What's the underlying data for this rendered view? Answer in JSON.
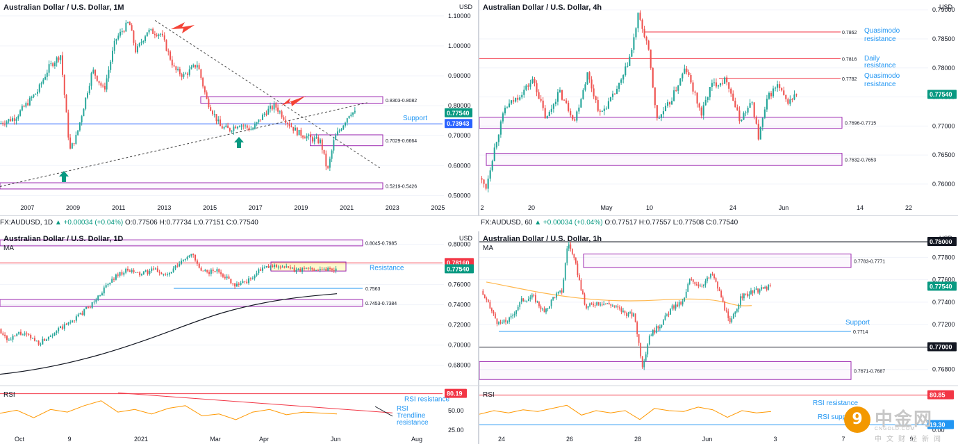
{
  "colors": {
    "up": "#26a69a",
    "down": "#ef5350",
    "blue": "#2962ff",
    "label_blue": "#2196f3",
    "purple": "#9c27b0",
    "red_line": "#f23645",
    "rsi": "#ff9800",
    "teal": "#089981",
    "orange_arrow": "#f44336",
    "grid": "#f0f3fa",
    "axis_text": "#131722"
  },
  "tickers": {
    "daily": {
      "prefix": "FX:AUDUSD, 1D",
      "change": "▲ +0.00034 (+0.04%)",
      "ohlc": "O:0.77506 H:0.77734 L:0.77151 C:0.77540",
      "last": "0.77540"
    },
    "hourly": {
      "prefix": "FX:AUDUSD, 60",
      "change": "▲ +0.00034 (+0.04%)",
      "ohlc": "O:0.77517 H:0.77557 L:0.77508 C:0.77540",
      "last": "0.77540"
    }
  },
  "watermark": {
    "glyph": "9",
    "name": "中金网",
    "sub": "CNGOLD.COM",
    "cn": "中文财经新闻"
  },
  "chart_data": [
    {
      "id": "monthly",
      "type": "candlestick",
      "title": "Australian Dollar / U.S. Dollar, 1M",
      "currency": "USD",
      "ylim": [
        0.48,
        1.13
      ],
      "xlim": [
        2005.8,
        2025.2
      ],
      "y_ticks": [
        "1.10000",
        "1.00000",
        "0.90000",
        "0.80000",
        "0.70000",
        "0.60000",
        "0.50000"
      ],
      "y_tick_values": [
        1.1,
        1.0,
        0.9,
        0.8,
        0.7,
        0.6,
        0.5
      ],
      "x_ticks": [
        "2007",
        "2009",
        "2011",
        "2013",
        "2015",
        "2017",
        "2019",
        "2021",
        "2023",
        "2025"
      ],
      "x_tick_values": [
        2007,
        2009,
        2011,
        2013,
        2015,
        2017,
        2019,
        2021,
        2023,
        2025
      ],
      "price_path": [
        [
          2005.8,
          0.74
        ],
        [
          2006.5,
          0.76
        ],
        [
          2007.5,
          0.85
        ],
        [
          2008.0,
          0.93
        ],
        [
          2008.5,
          0.97
        ],
        [
          2008.9,
          0.65
        ],
        [
          2009.2,
          0.7
        ],
        [
          2009.9,
          0.92
        ],
        [
          2010.4,
          0.85
        ],
        [
          2010.9,
          1.02
        ],
        [
          2011.5,
          1.08
        ],
        [
          2011.8,
          0.98
        ],
        [
          2012.3,
          1.05
        ],
        [
          2012.9,
          1.04
        ],
        [
          2013.5,
          0.92
        ],
        [
          2013.9,
          0.9
        ],
        [
          2014.5,
          0.94
        ],
        [
          2014.9,
          0.82
        ],
        [
          2015.5,
          0.73
        ],
        [
          2015.9,
          0.72
        ],
        [
          2016.3,
          0.74
        ],
        [
          2016.9,
          0.72
        ],
        [
          2017.5,
          0.78
        ],
        [
          2017.9,
          0.8
        ],
        [
          2018.5,
          0.74
        ],
        [
          2018.9,
          0.71
        ],
        [
          2019.5,
          0.69
        ],
        [
          2019.9,
          0.68
        ],
        [
          2020.2,
          0.58
        ],
        [
          2020.5,
          0.69
        ],
        [
          2020.9,
          0.74
        ],
        [
          2021.2,
          0.78
        ],
        [
          2021.4,
          0.7754
        ]
      ],
      "zones": [
        {
          "label": "0.8303-0.8082",
          "from": 0.8082,
          "to": 0.8303
        },
        {
          "label": "0.7029-0.6664",
          "from": 0.6664,
          "to": 0.7029
        },
        {
          "label": "0.5219-0.5426",
          "from": 0.5219,
          "to": 0.5426
        }
      ],
      "support": {
        "value": 0.73943,
        "label": "Support",
        "badge": "0.73943"
      },
      "last": {
        "value": 0.7754,
        "badge": "0.77540"
      }
    },
    {
      "id": "h4",
      "type": "candlestick",
      "title": "Australian Dollar / U.S. Dollar, 4h",
      "currency": "USD",
      "ylim": [
        0.757,
        0.7905
      ],
      "y_ticks": [
        "0.79000",
        "0.78500",
        "0.78000",
        "0.77500",
        "0.77000",
        "0.76500",
        "0.76000"
      ],
      "y_tick_values": [
        0.79,
        0.785,
        0.78,
        0.775,
        0.77,
        0.765,
        0.76
      ],
      "x_ticks": [
        "2",
        "20",
        "May",
        "10",
        "24",
        "Jun",
        "14",
        "22"
      ],
      "price_path": [
        [
          0,
          0.761
        ],
        [
          0.02,
          0.7595
        ],
        [
          0.05,
          0.767
        ],
        [
          0.08,
          0.773
        ],
        [
          0.12,
          0.775
        ],
        [
          0.17,
          0.778
        ],
        [
          0.21,
          0.771
        ],
        [
          0.25,
          0.776
        ],
        [
          0.3,
          0.771
        ],
        [
          0.34,
          0.779
        ],
        [
          0.38,
          0.772
        ],
        [
          0.42,
          0.775
        ],
        [
          0.45,
          0.778
        ],
        [
          0.48,
          0.783
        ],
        [
          0.5,
          0.789
        ],
        [
          0.53,
          0.784
        ],
        [
          0.56,
          0.771
        ],
        [
          0.6,
          0.774
        ],
        [
          0.65,
          0.78
        ],
        [
          0.7,
          0.772
        ],
        [
          0.73,
          0.777
        ],
        [
          0.78,
          0.778
        ],
        [
          0.82,
          0.771
        ],
        [
          0.86,
          0.774
        ],
        [
          0.88,
          0.768
        ],
        [
          0.91,
          0.775
        ],
        [
          0.94,
          0.777
        ],
        [
          0.97,
          0.774
        ],
        [
          1.0,
          0.7754
        ]
      ],
      "levels": [
        {
          "label": "0.7862",
          "value": 0.7862,
          "note": "Quasimodo resistance"
        },
        {
          "label": "0.7816",
          "value": 0.7816,
          "note": "Daily resistance"
        },
        {
          "label": "0.7782",
          "value": 0.7782,
          "note": "Quasimodo resistance"
        }
      ],
      "zones": [
        {
          "label": "0.7696-0.7715",
          "from": 0.7696,
          "to": 0.7715
        },
        {
          "label": "0.7632-0.7653",
          "from": 0.7632,
          "to": 0.7653
        }
      ],
      "last": {
        "value": 0.7754,
        "badge": "0.77540"
      }
    },
    {
      "id": "daily",
      "type": "candlestick",
      "title": "Australian Dollar / U.S. Dollar, 1D",
      "currency": "USD",
      "indicator": "MA",
      "ylim": [
        0.668,
        0.806
      ],
      "y_ticks": [
        "0.80000",
        "0.78000",
        "0.76000",
        "0.74000",
        "0.72000",
        "0.70000",
        "0.68000"
      ],
      "y_tick_values": [
        0.8,
        0.78,
        0.76,
        0.74,
        0.72,
        0.7,
        0.68
      ],
      "x_ticks": [
        "Oct",
        "9",
        "2021",
        "Mar",
        "Apr",
        "Jun",
        "Aug"
      ],
      "price_path": [
        [
          0,
          0.716
        ],
        [
          0.03,
          0.704
        ],
        [
          0.06,
          0.712
        ],
        [
          0.09,
          0.708
        ],
        [
          0.12,
          0.702
        ],
        [
          0.16,
          0.712
        ],
        [
          0.2,
          0.72
        ],
        [
          0.24,
          0.73
        ],
        [
          0.28,
          0.742
        ],
        [
          0.31,
          0.755
        ],
        [
          0.35,
          0.77
        ],
        [
          0.38,
          0.774
        ],
        [
          0.42,
          0.77
        ],
        [
          0.46,
          0.775
        ],
        [
          0.5,
          0.769
        ],
        [
          0.54,
          0.782
        ],
        [
          0.57,
          0.792
        ],
        [
          0.6,
          0.772
        ],
        [
          0.65,
          0.774
        ],
        [
          0.7,
          0.76
        ],
        [
          0.74,
          0.764
        ],
        [
          0.78,
          0.776
        ],
        [
          0.83,
          0.779
        ],
        [
          0.88,
          0.774
        ],
        [
          0.92,
          0.776
        ],
        [
          1.0,
          0.7754
        ]
      ],
      "zones": [
        {
          "label": "0.8045-0.7985",
          "from": 0.7985,
          "to": 0.8045
        },
        {
          "label": "0.7453-0.7384",
          "from": 0.7384,
          "to": 0.7453
        }
      ],
      "levels": [
        {
          "label": "0.7563",
          "value": 0.7563
        }
      ],
      "resistance": {
        "value": 0.7816,
        "label": "Resistance",
        "badge": "0.78160"
      },
      "last": {
        "value": 0.7754,
        "badge": "0.77540"
      },
      "rsi": {
        "label": "RSI",
        "ticks": [
          "50.00",
          "25.00"
        ],
        "badge": "80.19",
        "resistance_label": "RSI resistance",
        "trendline_label": "RSI Trendline resistance",
        "path": [
          [
            0,
            0.52
          ],
          [
            0.05,
            0.6
          ],
          [
            0.1,
            0.4
          ],
          [
            0.15,
            0.62
          ],
          [
            0.2,
            0.55
          ],
          [
            0.25,
            0.72
          ],
          [
            0.3,
            0.85
          ],
          [
            0.35,
            0.55
          ],
          [
            0.4,
            0.62
          ],
          [
            0.45,
            0.5
          ],
          [
            0.5,
            0.65
          ],
          [
            0.55,
            0.72
          ],
          [
            0.6,
            0.45
          ],
          [
            0.65,
            0.5
          ],
          [
            0.7,
            0.35
          ],
          [
            0.75,
            0.55
          ],
          [
            0.8,
            0.62
          ],
          [
            0.85,
            0.48
          ],
          [
            0.9,
            0.55
          ],
          [
            1.0,
            0.5
          ]
        ]
      }
    },
    {
      "id": "hourly",
      "type": "candlestick",
      "title": "Australian Dollar / U.S. Dollar, 1h",
      "currency": "USD",
      "indicator": "MA",
      "ylim": [
        0.7673,
        0.7797
      ],
      "y_ticks": [
        "0.77800",
        "0.77600",
        "0.77400",
        "0.77200",
        "0.77000",
        "0.76800"
      ],
      "y_tick_values": [
        0.778,
        0.776,
        0.774,
        0.772,
        0.77,
        0.768
      ],
      "x_ticks": [
        "24",
        "26",
        "28",
        "Jun",
        "3",
        "7",
        "9"
      ],
      "price_path": [
        [
          0,
          0.775
        ],
        [
          0.03,
          0.7735
        ],
        [
          0.06,
          0.772
        ],
        [
          0.1,
          0.7725
        ],
        [
          0.14,
          0.7742
        ],
        [
          0.18,
          0.7745
        ],
        [
          0.22,
          0.773
        ],
        [
          0.25,
          0.7745
        ],
        [
          0.28,
          0.775
        ],
        [
          0.3,
          0.7795
        ],
        [
          0.33,
          0.777
        ],
        [
          0.36,
          0.7735
        ],
        [
          0.4,
          0.774
        ],
        [
          0.45,
          0.7738
        ],
        [
          0.5,
          0.773
        ],
        [
          0.53,
          0.7728
        ],
        [
          0.56,
          0.768
        ],
        [
          0.58,
          0.771
        ],
        [
          0.62,
          0.772
        ],
        [
          0.66,
          0.7735
        ],
        [
          0.7,
          0.774
        ],
        [
          0.72,
          0.776
        ],
        [
          0.76,
          0.7755
        ],
        [
          0.8,
          0.7765
        ],
        [
          0.83,
          0.7745
        ],
        [
          0.86,
          0.772
        ],
        [
          0.9,
          0.7745
        ],
        [
          0.95,
          0.775
        ],
        [
          1.0,
          0.7754
        ]
      ],
      "zones": [
        {
          "label": "0.7783-0.7771",
          "from": 0.7771,
          "to": 0.7783
        },
        {
          "label": "0.7671-0.7687",
          "from": 0.7671,
          "to": 0.7687
        }
      ],
      "support": {
        "value": 0.7714,
        "label": "Support",
        "level_label": "0.7714"
      },
      "black_line": {
        "value": 0.77,
        "badge": "0.77000"
      },
      "top_badge": "0.78000",
      "last": {
        "value": 0.7754,
        "badge": "0.77540"
      },
      "rsi": {
        "label": "RSI",
        "ticks": [
          "0.00"
        ],
        "badge": "80.85",
        "badge2": "19.30",
        "resistance_label": "RSI resistance",
        "support_label": "RSI support",
        "path": [
          [
            0,
            0.42
          ],
          [
            0.05,
            0.5
          ],
          [
            0.1,
            0.45
          ],
          [
            0.15,
            0.52
          ],
          [
            0.2,
            0.48
          ],
          [
            0.25,
            0.55
          ],
          [
            0.3,
            0.62
          ],
          [
            0.35,
            0.4
          ],
          [
            0.4,
            0.5
          ],
          [
            0.45,
            0.45
          ],
          [
            0.5,
            0.5
          ],
          [
            0.55,
            0.3
          ],
          [
            0.6,
            0.55
          ],
          [
            0.65,
            0.5
          ],
          [
            0.7,
            0.48
          ],
          [
            0.75,
            0.58
          ],
          [
            0.8,
            0.52
          ],
          [
            0.85,
            0.35
          ],
          [
            0.9,
            0.5
          ],
          [
            0.95,
            0.45
          ],
          [
            1.0,
            0.48
          ]
        ]
      }
    }
  ]
}
